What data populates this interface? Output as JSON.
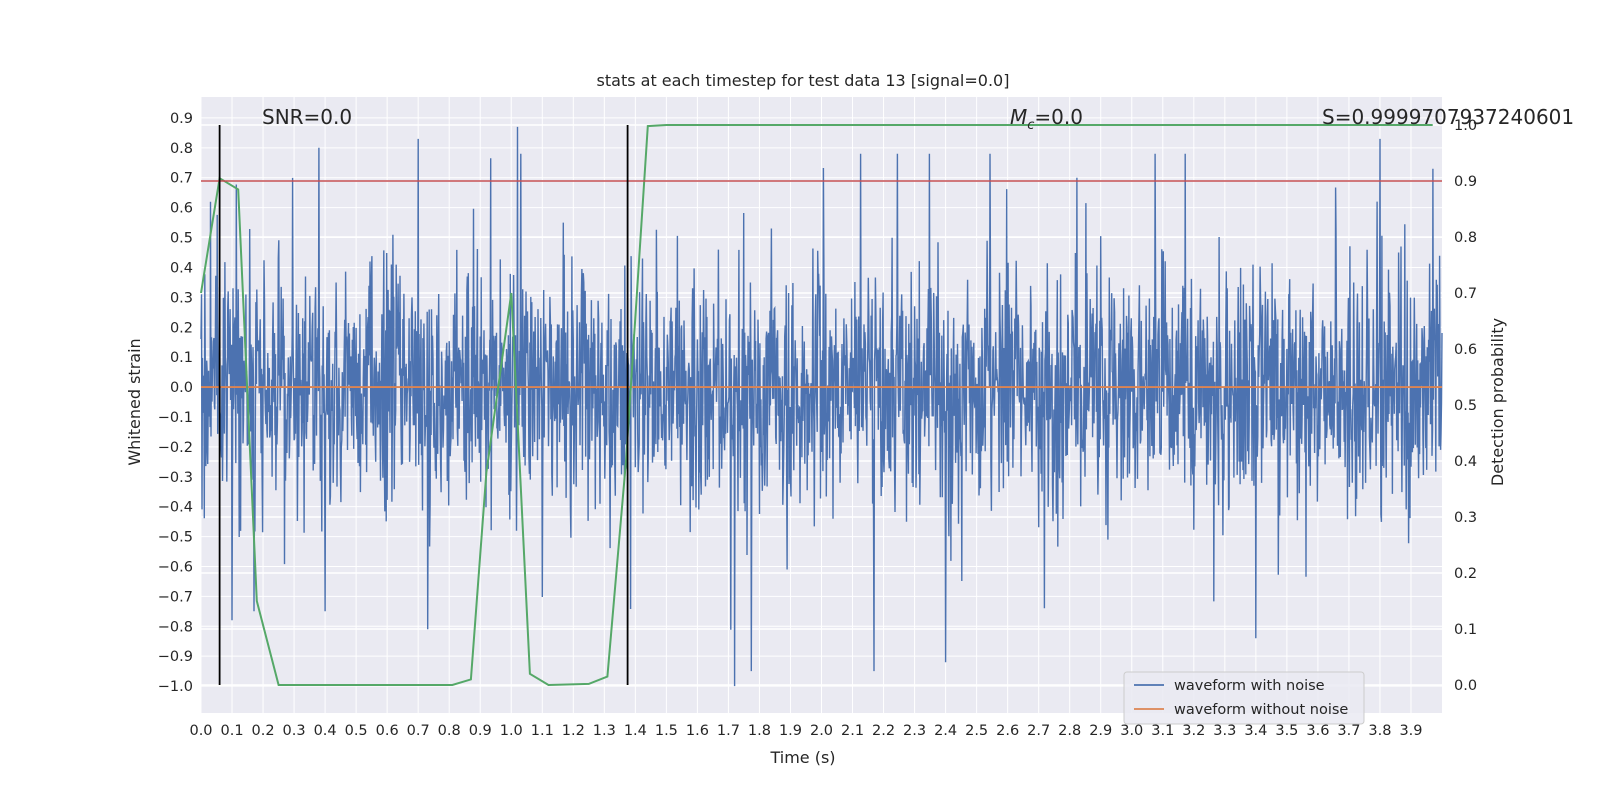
{
  "chart_data": {
    "type": "line",
    "title": "stats at each timestep for test data 13 [signal=0.0]",
    "xlabel": "Time (s)",
    "ylabel": "Whitened strain",
    "y2label": "Detection probability",
    "xlim": [
      0.0,
      4.0
    ],
    "ylim": [
      -1.09,
      0.97
    ],
    "y2lim": [
      -0.05,
      1.05
    ],
    "x_ticks": [
      "0.0",
      "0.1",
      "0.2",
      "0.3",
      "0.4",
      "0.5",
      "0.6",
      "0.7",
      "0.8",
      "0.9",
      "1.0",
      "1.1",
      "1.2",
      "1.3",
      "1.4",
      "1.5",
      "1.6",
      "1.7",
      "1.8",
      "1.9",
      "2.0",
      "2.1",
      "2.2",
      "2.3",
      "2.4",
      "2.5",
      "2.6",
      "2.7",
      "2.8",
      "2.9",
      "3.0",
      "3.1",
      "3.2",
      "3.3",
      "3.4",
      "3.5",
      "3.6",
      "3.7",
      "3.8",
      "3.9"
    ],
    "y_ticks": [
      "0.9",
      "0.8",
      "0.7",
      "0.6",
      "0.5",
      "0.4",
      "0.3",
      "0.2",
      "0.1",
      "0.0",
      "−0.1",
      "−0.2",
      "−0.3",
      "−0.4",
      "−0.5",
      "−0.6",
      "−0.7",
      "−0.8",
      "−0.9",
      "−1.0"
    ],
    "y2_ticks": [
      "1.0",
      "0.9",
      "0.8",
      "0.7",
      "0.6",
      "0.5",
      "0.4",
      "0.3",
      "0.2",
      "0.1",
      "0.0"
    ],
    "grid": true,
    "legend_position": "lower-right",
    "series": [
      {
        "name": "waveform with noise",
        "color": "#4c72b0",
        "axis": "left",
        "style": "dense noise, approx ±0.35 band, peaks to ~0.85 / −1.0",
        "noise_seed": 13,
        "peaks": [
          [
            0.03,
            0.62
          ],
          [
            0.1,
            -0.78
          ],
          [
            0.17,
            -0.75
          ],
          [
            0.38,
            0.8
          ],
          [
            0.4,
            -0.75
          ],
          [
            0.7,
            0.83
          ],
          [
            0.73,
            -0.81
          ],
          [
            1.02,
            0.87
          ],
          [
            1.72,
            -1.0
          ],
          [
            2.4,
            -0.92
          ],
          [
            3.4,
            -0.84
          ],
          [
            3.8,
            0.83
          ],
          [
            3.97,
            0.73
          ]
        ]
      },
      {
        "name": "waveform without noise",
        "color": "#dd8452",
        "axis": "left",
        "x": [
          0.0,
          4.0
        ],
        "y": [
          0.0,
          0.0
        ]
      },
      {
        "name": "detection probability",
        "color": "#55a868",
        "axis": "right",
        "x": [
          0.0,
          0.06,
          0.12,
          0.18,
          0.25,
          0.31,
          0.5,
          0.81,
          0.87,
          0.92,
          1.0,
          1.06,
          1.12,
          1.25,
          1.31,
          1.37,
          1.44,
          1.5,
          3.97
        ],
        "y": [
          0.7,
          0.905,
          0.885,
          0.15,
          0.0,
          0.0,
          0.0,
          0.0,
          0.01,
          0.38,
          0.7,
          0.02,
          0.0,
          0.002,
          0.015,
          0.4,
          0.998,
          1.0,
          1.0
        ]
      }
    ],
    "reference_lines": [
      {
        "kind": "horizontal",
        "axis": "right",
        "value": 0.9,
        "color": "#c44e52"
      },
      {
        "kind": "vertical",
        "value": 0.06,
        "color": "#000000"
      },
      {
        "kind": "vertical",
        "value": 1.375,
        "color": "#000000"
      }
    ],
    "annotations": {
      "snr": "SNR=0.0",
      "mc_symbol": "M",
      "mc_sub": "c",
      "mc_value": "=0.0",
      "score": "S=0.9999707937240601"
    },
    "colors": {
      "plot_bg": "#eaeaf2",
      "grid": "#ffffff",
      "text": "#262626"
    }
  }
}
